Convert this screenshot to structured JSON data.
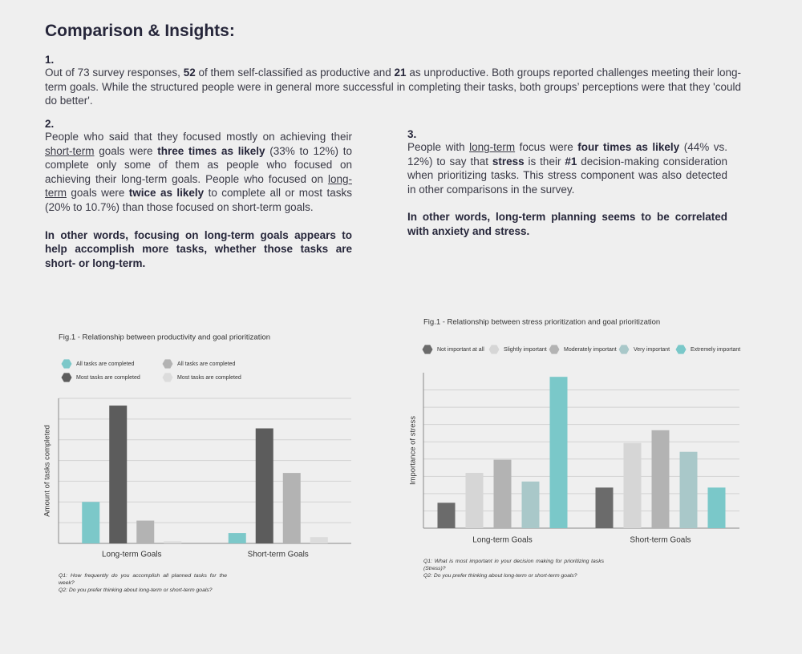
{
  "title": "Comparison & Insights:",
  "sections": [
    {
      "number": "1.",
      "paragraphs": [
        {
          "runs": [
            {
              "text": "Out of 73 survey responses, "
            },
            {
              "text": "52",
              "style": "bold"
            },
            {
              "text": " of them self-classified as productive and "
            },
            {
              "text": "21",
              "style": "bold"
            },
            {
              "text": " as unproductive. Both groups reported challenges meeting their long-term goals. While the structured people were in general more successful in completing their tasks, both groups’ perceptions were that they 'could do better'."
            }
          ]
        }
      ]
    },
    {
      "number": "2.",
      "paragraphs": [
        {
          "runs": [
            {
              "text": "People who said that they focused mostly on achieving their "
            },
            {
              "text": "short-term",
              "style": "underline"
            },
            {
              "text": " goals were "
            },
            {
              "text": "three times as likely",
              "style": "bold"
            },
            {
              "text": " (33% to 12%) to complete only some of them as people who focused on achieving their long-term goals. People who focused on "
            },
            {
              "text": "long-term",
              "style": "underline"
            },
            {
              "text": " goals were "
            },
            {
              "text": "twice as likely",
              "style": "bold"
            },
            {
              "text": " to complete all or most tasks (20% to 10.7%) than those focused on short-term goals."
            }
          ]
        },
        {
          "runs": [
            {
              "text": "In other words, focusing on long-term goals appears to help accomplish more tasks, whether those tasks are short- or long-term.",
              "style": "bold"
            }
          ]
        }
      ]
    },
    {
      "number": "3.",
      "paragraphs": [
        {
          "runs": [
            {
              "text": "People with "
            },
            {
              "text": "long-term",
              "style": "underline"
            },
            {
              "text": " focus were "
            },
            {
              "text": "four times as likely",
              "style": "bold"
            },
            {
              "text": " (44% vs. 12%) to say that "
            },
            {
              "text": "stress",
              "style": "bold"
            },
            {
              "text": " is their "
            },
            {
              "text": "#1",
              "style": "bold"
            },
            {
              "text": " decision-making consideration when prioritizing tasks. This stress component was also detected in other comparisons in the survey."
            }
          ]
        },
        {
          "runs": [
            {
              "text": "In other words, long-term planning seems to be correlated with anxiety and stress.",
              "style": "bold"
            }
          ]
        }
      ]
    }
  ],
  "chart_data": [
    {
      "type": "bar",
      "title": "Fig.1 - Relationship between productivity and goal prioritization",
      "y_label": "Amount of tasks completed",
      "categories": [
        "Long-term Goals",
        "Short-term Goals"
      ],
      "series": [
        {
          "name": "All tasks are completed",
          "color": "#7cc8c9",
          "values": [
            2,
            0.5
          ]
        },
        {
          "name": "Most tasks are completed",
          "color": "#5c5c5c",
          "values": [
            6.65,
            5.55
          ]
        },
        {
          "name": "All tasks are completed",
          "color": "#b3b3b3",
          "values": [
            1.1,
            3.4
          ]
        },
        {
          "name": "Most tasks are completed",
          "color": "#dcdcdc",
          "values": [
            0.1,
            0.3
          ]
        }
      ],
      "ylim": [
        0,
        7
      ],
      "yticks": [
        0,
        1,
        2,
        3,
        4,
        5,
        6,
        7
      ],
      "tick_labels": false,
      "grid": true,
      "notes": [
        "Q1: How frequently do you accomplish all planned tasks for the week?",
        "Q2: Do you prefer thinking about long-term or short-term goals?"
      ]
    },
    {
      "type": "bar",
      "title": "Fig.1 - Relationship between stress prioritization and goal prioritization",
      "y_label": "Importance of stress",
      "categories": [
        "Long-term Goals",
        "Short-term Goals"
      ],
      "series": [
        {
          "name": "Not important at all",
          "color": "#6b6b6b",
          "values": [
            1.47,
            2.35
          ]
        },
        {
          "name": "Slightly important",
          "color": "#d6d6d6",
          "values": [
            3.2,
            4.93
          ]
        },
        {
          "name": "Moderately important",
          "color": "#b3b3b3",
          "values": [
            3.96,
            5.67
          ]
        },
        {
          "name": "Very important",
          "color": "#a9c8c9",
          "values": [
            2.7,
            4.42
          ]
        },
        {
          "name": "Extremely important",
          "color": "#7ac8c9",
          "values": [
            8.76,
            2.35
          ]
        }
      ],
      "ylim": [
        0,
        9
      ],
      "yticks": [
        0,
        1,
        2,
        3,
        4,
        5,
        6,
        7,
        8
      ],
      "tick_labels": false,
      "grid": true,
      "notes": [
        "Q1: What is most important in your decision making for prioritizing tasks (Stress)?",
        "Q2: Do you prefer thinking about long-term or short-term goals?"
      ]
    }
  ]
}
